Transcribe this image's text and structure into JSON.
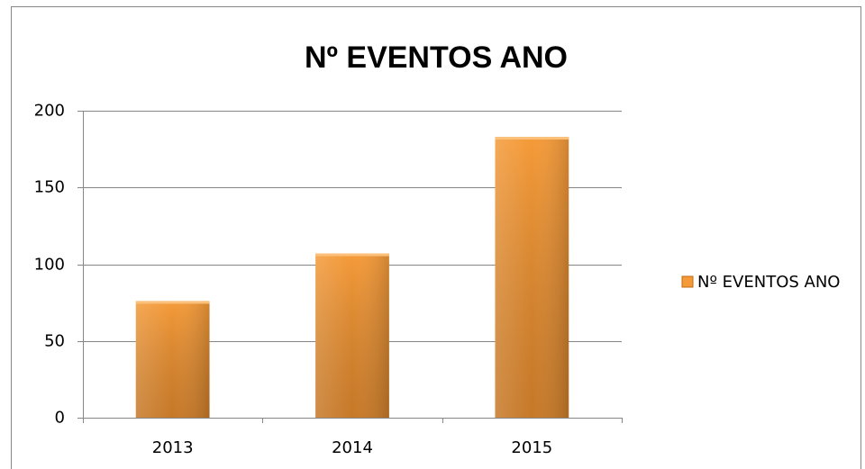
{
  "chart_data": {
    "type": "bar",
    "title": "Nº EVENTOS ANO",
    "categories": [
      "2013",
      "2014",
      "2015"
    ],
    "series": [
      {
        "name": "Nº EVENTOS ANO",
        "color": "#f59a38",
        "values": [
          76,
          107,
          183
        ]
      }
    ],
    "ylim": [
      0,
      200
    ],
    "yticks": [
      0,
      50,
      100,
      150,
      200
    ],
    "grid": true,
    "legend": "right"
  }
}
